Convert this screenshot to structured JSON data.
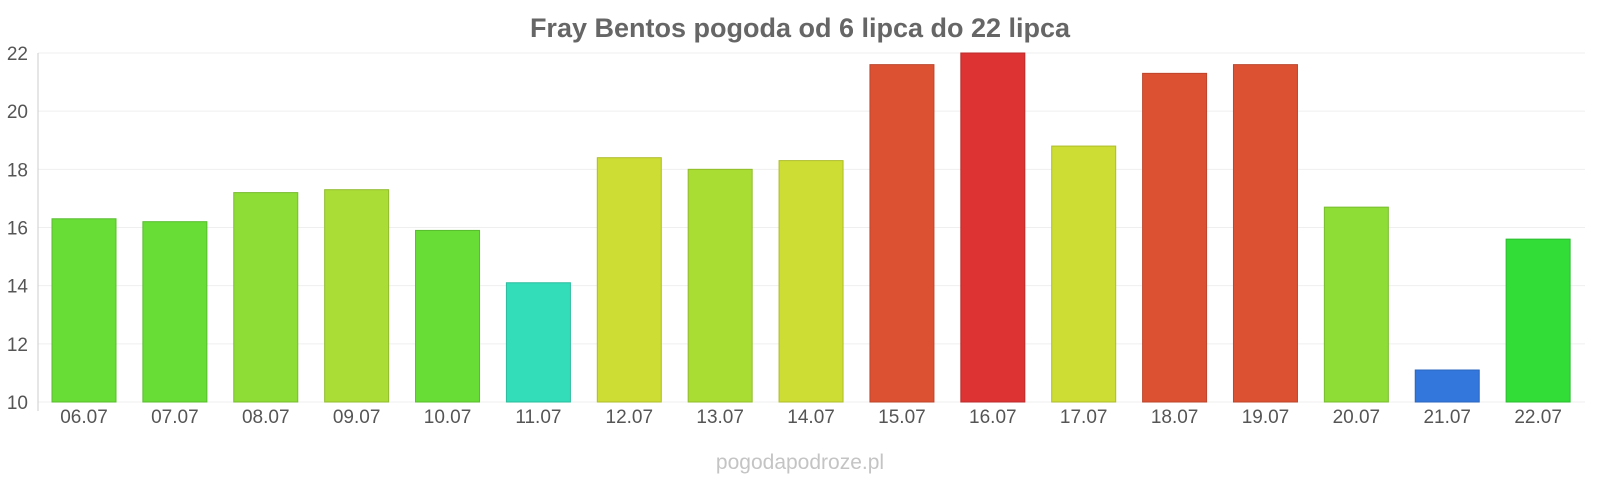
{
  "chart_data": {
    "type": "bar",
    "title": "Fray Bentos pogoda od 6 lipca do 22 lipca",
    "categories": [
      "06.07",
      "07.07",
      "08.07",
      "09.07",
      "10.07",
      "11.07",
      "12.07",
      "13.07",
      "14.07",
      "15.07",
      "16.07",
      "17.07",
      "18.07",
      "19.07",
      "20.07",
      "21.07",
      "22.07"
    ],
    "values": [
      16.3,
      16.2,
      17.2,
      17.3,
      15.9,
      14.1,
      18.4,
      18.0,
      18.3,
      21.6,
      22.0,
      18.8,
      21.3,
      21.6,
      16.7,
      11.1,
      15.6
    ],
    "bar_colors": [
      "#68dd36",
      "#68dd36",
      "#8ddd36",
      "#aadd36",
      "#68dd36",
      "#33ddb9",
      "#cddd33",
      "#aadd33",
      "#cddd33",
      "#dd5133",
      "#dd3333",
      "#cddd33",
      "#dd5133",
      "#dd5133",
      "#8ddd36",
      "#3377dd",
      "#33dd38"
    ],
    "yticks": [
      10,
      12,
      14,
      16,
      18,
      20,
      22
    ],
    "ylim": [
      10,
      22
    ],
    "xlabel": "",
    "ylabel": "",
    "grid": true,
    "legend": "none"
  },
  "footer": {
    "watermark": "pogodapodroze.pl"
  }
}
